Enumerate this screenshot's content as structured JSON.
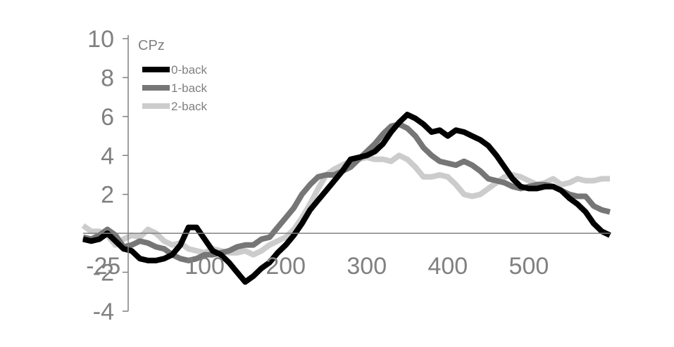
{
  "chart_data": {
    "type": "line",
    "title": "CPz",
    "xlabel": "",
    "ylabel": "",
    "xlim": [
      -50,
      600
    ],
    "ylim": [
      -4,
      10
    ],
    "x_ticks": [
      {
        "value": -25,
        "label": "-25"
      },
      {
        "value": 100,
        "label": "100"
      },
      {
        "value": 200,
        "label": "200"
      },
      {
        "value": 300,
        "label": "300"
      },
      {
        "value": 400,
        "label": "400"
      },
      {
        "value": 500,
        "label": "500"
      }
    ],
    "y_ticks": [
      {
        "value": 10,
        "label": "10"
      },
      {
        "value": 8,
        "label": "8"
      },
      {
        "value": 6,
        "label": "6"
      },
      {
        "value": 4,
        "label": "4"
      },
      {
        "value": 2,
        "label": "2"
      },
      {
        "value": -2,
        "label": "-2"
      },
      {
        "value": -4,
        "label": "-4"
      }
    ],
    "grid": false,
    "legend_position": "top-left",
    "series": [
      {
        "name": "0-back",
        "color": "#000000",
        "points": [
          [
            -50,
            -0.3
          ],
          [
            -40,
            -0.4
          ],
          [
            -30,
            -0.3
          ],
          [
            -20,
            0.0
          ],
          [
            -10,
            -0.4
          ],
          [
            0,
            -0.8
          ],
          [
            10,
            -0.9
          ],
          [
            20,
            -1.3
          ],
          [
            30,
            -1.4
          ],
          [
            40,
            -1.4
          ],
          [
            50,
            -1.3
          ],
          [
            60,
            -1.1
          ],
          [
            70,
            -0.6
          ],
          [
            80,
            0.3
          ],
          [
            90,
            0.3
          ],
          [
            100,
            -0.3
          ],
          [
            110,
            -0.9
          ],
          [
            120,
            -1.1
          ],
          [
            130,
            -1.5
          ],
          [
            140,
            -2.0
          ],
          [
            150,
            -2.5
          ],
          [
            160,
            -2.2
          ],
          [
            170,
            -1.8
          ],
          [
            180,
            -1.5
          ],
          [
            190,
            -1.0
          ],
          [
            200,
            -0.6
          ],
          [
            210,
            -0.1
          ],
          [
            220,
            0.5
          ],
          [
            230,
            1.2
          ],
          [
            240,
            1.7
          ],
          [
            250,
            2.2
          ],
          [
            260,
            2.7
          ],
          [
            270,
            3.2
          ],
          [
            280,
            3.8
          ],
          [
            290,
            3.9
          ],
          [
            300,
            4.0
          ],
          [
            310,
            4.2
          ],
          [
            320,
            4.6
          ],
          [
            330,
            5.2
          ],
          [
            340,
            5.7
          ],
          [
            350,
            6.1
          ],
          [
            360,
            5.9
          ],
          [
            370,
            5.6
          ],
          [
            380,
            5.2
          ],
          [
            390,
            5.3
          ],
          [
            400,
            5.0
          ],
          [
            410,
            5.3
          ],
          [
            420,
            5.2
          ],
          [
            430,
            5.0
          ],
          [
            440,
            4.8
          ],
          [
            450,
            4.5
          ],
          [
            460,
            4.0
          ],
          [
            470,
            3.4
          ],
          [
            480,
            2.8
          ],
          [
            490,
            2.4
          ],
          [
            500,
            2.3
          ],
          [
            510,
            2.3
          ],
          [
            520,
            2.4
          ],
          [
            530,
            2.4
          ],
          [
            540,
            2.2
          ],
          [
            550,
            1.8
          ],
          [
            560,
            1.5
          ],
          [
            570,
            1.1
          ],
          [
            580,
            0.5
          ],
          [
            590,
            0.1
          ],
          [
            600,
            -0.1
          ]
        ]
      },
      {
        "name": "1-back",
        "color": "#767676",
        "points": [
          [
            -50,
            -0.2
          ],
          [
            -40,
            -0.3
          ],
          [
            -30,
            -0.1
          ],
          [
            -20,
            0.2
          ],
          [
            -10,
            -0.1
          ],
          [
            0,
            -0.7
          ],
          [
            10,
            -0.6
          ],
          [
            20,
            -0.4
          ],
          [
            30,
            -0.5
          ],
          [
            40,
            -0.7
          ],
          [
            50,
            -0.8
          ],
          [
            60,
            -1.1
          ],
          [
            70,
            -1.3
          ],
          [
            80,
            -1.4
          ],
          [
            90,
            -1.3
          ],
          [
            100,
            -1.1
          ],
          [
            110,
            -1.1
          ],
          [
            120,
            -1.0
          ],
          [
            130,
            -0.9
          ],
          [
            140,
            -0.7
          ],
          [
            150,
            -0.6
          ],
          [
            160,
            -0.6
          ],
          [
            170,
            -0.3
          ],
          [
            180,
            -0.2
          ],
          [
            190,
            0.3
          ],
          [
            200,
            0.8
          ],
          [
            210,
            1.3
          ],
          [
            220,
            2.0
          ],
          [
            230,
            2.5
          ],
          [
            240,
            2.9
          ],
          [
            250,
            3.0
          ],
          [
            260,
            3.0
          ],
          [
            270,
            3.2
          ],
          [
            280,
            3.4
          ],
          [
            290,
            3.8
          ],
          [
            300,
            4.2
          ],
          [
            310,
            4.6
          ],
          [
            320,
            5.1
          ],
          [
            330,
            5.5
          ],
          [
            340,
            5.6
          ],
          [
            350,
            5.4
          ],
          [
            360,
            5.0
          ],
          [
            370,
            4.4
          ],
          [
            380,
            4.0
          ],
          [
            390,
            3.7
          ],
          [
            400,
            3.6
          ],
          [
            410,
            3.5
          ],
          [
            420,
            3.7
          ],
          [
            430,
            3.5
          ],
          [
            440,
            3.2
          ],
          [
            450,
            2.8
          ],
          [
            460,
            2.7
          ],
          [
            470,
            2.6
          ],
          [
            480,
            2.4
          ],
          [
            490,
            2.3
          ],
          [
            500,
            2.4
          ],
          [
            510,
            2.5
          ],
          [
            520,
            2.5
          ],
          [
            530,
            2.4
          ],
          [
            540,
            2.2
          ],
          [
            550,
            2.0
          ],
          [
            560,
            1.9
          ],
          [
            570,
            1.9
          ],
          [
            580,
            1.4
          ],
          [
            590,
            1.2
          ],
          [
            600,
            1.1
          ]
        ]
      },
      {
        "name": "2-back",
        "color": "#cccccc",
        "points": [
          [
            -50,
            0.4
          ],
          [
            -40,
            0.1
          ],
          [
            -30,
            0.1
          ],
          [
            -20,
            -0.1
          ],
          [
            -10,
            -0.6
          ],
          [
            0,
            -0.3
          ],
          [
            10,
            -0.1
          ],
          [
            20,
            -0.2
          ],
          [
            30,
            0.2
          ],
          [
            40,
            0.0
          ],
          [
            50,
            -0.4
          ],
          [
            60,
            -0.6
          ],
          [
            70,
            -0.5
          ],
          [
            80,
            -0.8
          ],
          [
            90,
            -0.9
          ],
          [
            100,
            -1.0
          ],
          [
            110,
            -0.8
          ],
          [
            120,
            -0.9
          ],
          [
            130,
            -1.0
          ],
          [
            140,
            -1.0
          ],
          [
            150,
            -0.9
          ],
          [
            160,
            -1.1
          ],
          [
            170,
            -0.9
          ],
          [
            180,
            -0.6
          ],
          [
            190,
            -0.4
          ],
          [
            200,
            -0.2
          ],
          [
            210,
            0.2
          ],
          [
            220,
            0.8
          ],
          [
            230,
            1.5
          ],
          [
            240,
            2.3
          ],
          [
            250,
            3.0
          ],
          [
            260,
            3.3
          ],
          [
            270,
            3.5
          ],
          [
            280,
            3.7
          ],
          [
            290,
            3.8
          ],
          [
            300,
            3.9
          ],
          [
            310,
            3.8
          ],
          [
            320,
            3.8
          ],
          [
            330,
            3.7
          ],
          [
            340,
            4.0
          ],
          [
            350,
            3.8
          ],
          [
            360,
            3.4
          ],
          [
            370,
            2.9
          ],
          [
            380,
            2.9
          ],
          [
            390,
            3.0
          ],
          [
            400,
            2.9
          ],
          [
            410,
            2.5
          ],
          [
            420,
            2.0
          ],
          [
            430,
            1.9
          ],
          [
            440,
            2.0
          ],
          [
            450,
            2.3
          ],
          [
            460,
            2.6
          ],
          [
            470,
            2.9
          ],
          [
            480,
            3.0
          ],
          [
            490,
            2.9
          ],
          [
            500,
            2.7
          ],
          [
            510,
            2.5
          ],
          [
            520,
            2.6
          ],
          [
            530,
            2.8
          ],
          [
            540,
            2.5
          ],
          [
            550,
            2.6
          ],
          [
            560,
            2.8
          ],
          [
            570,
            2.7
          ],
          [
            580,
            2.7
          ],
          [
            590,
            2.8
          ],
          [
            600,
            2.8
          ]
        ]
      }
    ]
  }
}
